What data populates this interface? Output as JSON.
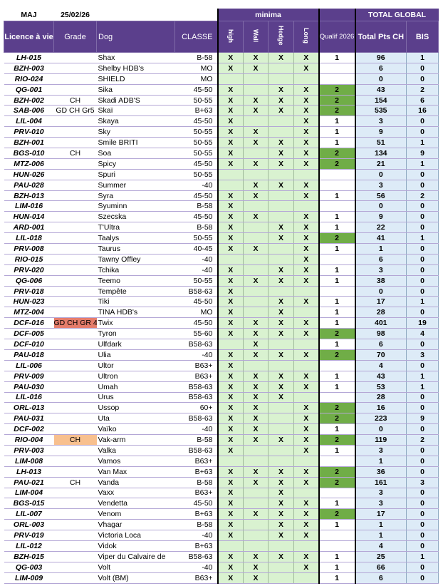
{
  "header": {
    "maj_label": "MAJ",
    "maj_date": "25/02/26",
    "minima_label": "minima",
    "total_label": "TOTAL GLOBAL",
    "columns": [
      "Licence à vie",
      "Grade",
      "Dog",
      "CLASSE",
      "high",
      "Wall",
      "Hedge",
      "Long",
      "Qualif 2026",
      "Total Pts CH",
      "BIS"
    ]
  },
  "colors": {
    "header": "#5b3f8c",
    "minima": "#d9f2d0",
    "qualif2": "#70ad47",
    "total": "#ddebf7",
    "gd_ch_gr4": "#e57c6b",
    "ch_orange": "#f8c08e"
  },
  "rows": [
    {
      "lic": "LH-015",
      "grade": "",
      "dog": "Shax",
      "classe": "B-58",
      "m": [
        "X",
        "X",
        "X",
        "X"
      ],
      "q": "1",
      "pts": "96",
      "bis": "1"
    },
    {
      "lic": "BZH-003",
      "grade": "",
      "dog": "Shelby HDB's",
      "classe": "MO",
      "m": [
        "X",
        "X",
        "",
        "X"
      ],
      "q": "",
      "pts": "6",
      "bis": "0"
    },
    {
      "lic": "RIO-024",
      "grade": "",
      "dog": "SHIELD",
      "classe": "MO",
      "m": [
        "",
        "",
        "",
        ""
      ],
      "q": "",
      "pts": "0",
      "bis": "0"
    },
    {
      "lic": "QG-001",
      "grade": "",
      "dog": "Sika",
      "classe": "45-50",
      "m": [
        "X",
        "",
        "X",
        "X"
      ],
      "q": "2",
      "pts": "43",
      "bis": "2"
    },
    {
      "lic": "BZH-002",
      "grade": "CH",
      "dog": "Skadi ADB'S",
      "classe": "50-55",
      "m": [
        "X",
        "X",
        "X",
        "X"
      ],
      "q": "2",
      "pts": "154",
      "bis": "6"
    },
    {
      "lic": "SAB-006",
      "grade": "GD CH Gr5",
      "dog": "Skaï",
      "classe": "B+63",
      "m": [
        "X",
        "X",
        "X",
        "X"
      ],
      "q": "2",
      "pts": "535",
      "bis": "16"
    },
    {
      "lic": "LIL-004",
      "grade": "",
      "dog": "Skaya",
      "classe": "45-50",
      "m": [
        "X",
        "",
        "",
        "X"
      ],
      "q": "1",
      "pts": "3",
      "bis": "0"
    },
    {
      "lic": "PRV-010",
      "grade": "",
      "dog": "Sky",
      "classe": "50-55",
      "m": [
        "X",
        "X",
        "",
        "X"
      ],
      "q": "1",
      "pts": "9",
      "bis": "0"
    },
    {
      "lic": "BZH-001",
      "grade": "",
      "dog": "Smile BRITI",
      "classe": "50-55",
      "m": [
        "X",
        "X",
        "X",
        "X"
      ],
      "q": "1",
      "pts": "51",
      "bis": "1"
    },
    {
      "lic": "BGS-010",
      "grade": "CH",
      "dog": "Soa",
      "classe": "50-55",
      "m": [
        "X",
        "",
        "X",
        "X"
      ],
      "q": "2",
      "pts": "134",
      "bis": "9"
    },
    {
      "lic": "MTZ-006",
      "grade": "",
      "dog": "Spicy",
      "classe": "45-50",
      "m": [
        "X",
        "X",
        "X",
        "X"
      ],
      "q": "2",
      "pts": "21",
      "bis": "1"
    },
    {
      "lic": "HUN-026",
      "grade": "",
      "dog": "Spuri",
      "classe": "50-55",
      "m": [
        "",
        "",
        "",
        ""
      ],
      "q": "",
      "pts": "0",
      "bis": "0"
    },
    {
      "lic": "PAU-028",
      "grade": "",
      "dog": "Summer",
      "classe": "-40",
      "m": [
        "",
        "X",
        "X",
        "X"
      ],
      "q": "",
      "pts": "3",
      "bis": "0"
    },
    {
      "lic": "BZH-013",
      "grade": "",
      "dog": "Syra",
      "classe": "45-50",
      "m": [
        "X",
        "X",
        "",
        "X"
      ],
      "q": "1",
      "pts": "56",
      "bis": "2"
    },
    {
      "lic": "LIM-016",
      "grade": "",
      "dog": "Syuminn",
      "classe": "B-58",
      "m": [
        "X",
        "",
        "",
        ""
      ],
      "q": "",
      "pts": "0",
      "bis": "0"
    },
    {
      "lic": "HUN-014",
      "grade": "",
      "dog": "Szecska",
      "classe": "45-50",
      "m": [
        "X",
        "X",
        "",
        "X"
      ],
      "q": "1",
      "pts": "9",
      "bis": "0"
    },
    {
      "lic": "ARD-001",
      "grade": "",
      "dog": "T'Ultra",
      "classe": "B-58",
      "m": [
        "X",
        "",
        "X",
        "X"
      ],
      "q": "1",
      "pts": "22",
      "bis": "0"
    },
    {
      "lic": "LIL-018",
      "grade": "",
      "dog": "Taalys",
      "classe": "50-55",
      "m": [
        "X",
        "",
        "X",
        "X"
      ],
      "q": "2",
      "pts": "41",
      "bis": "1"
    },
    {
      "lic": "PRV-008",
      "grade": "",
      "dog": "Taurus",
      "classe": "40-45",
      "m": [
        "X",
        "X",
        "",
        "X"
      ],
      "q": "1",
      "pts": "1",
      "bis": "0"
    },
    {
      "lic": "RIO-015",
      "grade": "",
      "dog": "Tawny Offley",
      "classe": "-40",
      "m": [
        "",
        "",
        "",
        "X"
      ],
      "q": "",
      "pts": "6",
      "bis": "0"
    },
    {
      "lic": "PRV-020",
      "grade": "",
      "dog": "Tchika",
      "classe": "-40",
      "m": [
        "X",
        "",
        "X",
        "X"
      ],
      "q": "1",
      "pts": "3",
      "bis": "0"
    },
    {
      "lic": "QG-006",
      "grade": "",
      "dog": "Teemo",
      "classe": "50-55",
      "m": [
        "X",
        "X",
        "X",
        "X"
      ],
      "q": "1",
      "pts": "38",
      "bis": "0"
    },
    {
      "lic": "PRV-018",
      "grade": "",
      "dog": "Tempête",
      "classe": "B58-63",
      "m": [
        "X",
        "",
        "",
        ""
      ],
      "q": "",
      "pts": "0",
      "bis": "0"
    },
    {
      "lic": "HUN-023",
      "grade": "",
      "dog": "Tiki",
      "classe": "45-50",
      "m": [
        "X",
        "",
        "X",
        "X"
      ],
      "q": "1",
      "pts": "17",
      "bis": "1"
    },
    {
      "lic": "MTZ-004",
      "grade": "",
      "dog": "TINA HDB's",
      "classe": "MO",
      "m": [
        "X",
        "",
        "X",
        ""
      ],
      "q": "1",
      "pts": "28",
      "bis": "0"
    },
    {
      "lic": "DCF-016",
      "grade": "GD CH GR 4",
      "gcolor": "#e57c6b",
      "dog": "Twix",
      "classe": "45-50",
      "m": [
        "X",
        "X",
        "X",
        "X"
      ],
      "q": "1",
      "pts": "401",
      "bis": "19"
    },
    {
      "lic": "DCF-005",
      "grade": "",
      "dog": "Tyron",
      "classe": "55-60",
      "m": [
        "X",
        "X",
        "X",
        "X"
      ],
      "q": "2",
      "pts": "98",
      "bis": "4"
    },
    {
      "lic": "DCF-010",
      "grade": "",
      "dog": "Ulfdark",
      "classe": "B58-63",
      "m": [
        "",
        "X",
        "",
        ""
      ],
      "q": "1",
      "pts": "6",
      "bis": "0"
    },
    {
      "lic": "PAU-018",
      "grade": "",
      "dog": "Ulia",
      "classe": "-40",
      "m": [
        "X",
        "X",
        "X",
        "X"
      ],
      "q": "2",
      "pts": "70",
      "bis": "3"
    },
    {
      "lic": "LIL-006",
      "grade": "",
      "dog": "Ultor",
      "classe": "B63+",
      "m": [
        "X",
        "",
        "",
        ""
      ],
      "q": "",
      "pts": "4",
      "bis": "0"
    },
    {
      "lic": "PRV-009",
      "grade": "",
      "dog": "Ultron",
      "classe": "B63+",
      "m": [
        "X",
        "X",
        "X",
        "X"
      ],
      "q": "1",
      "pts": "43",
      "bis": "1"
    },
    {
      "lic": "PAU-030",
      "grade": "",
      "dog": "Umah",
      "classe": "B58-63",
      "m": [
        "X",
        "X",
        "X",
        "X"
      ],
      "q": "1",
      "pts": "53",
      "bis": "1"
    },
    {
      "lic": "LIL-016",
      "grade": "",
      "dog": "Urus",
      "classe": "B58-63",
      "m": [
        "X",
        "X",
        "X",
        ""
      ],
      "q": "",
      "pts": "28",
      "bis": "0"
    },
    {
      "lic": "ORL-013",
      "grade": "",
      "dog": "Ussop",
      "classe": "60+",
      "m": [
        "X",
        "X",
        "",
        "X"
      ],
      "q": "2",
      "pts": "16",
      "bis": "0"
    },
    {
      "lic": "PAU-031",
      "grade": "",
      "dog": "Uta",
      "classe": "B58-63",
      "m": [
        "X",
        "X",
        "",
        "X"
      ],
      "q": "2",
      "pts": "223",
      "bis": "9"
    },
    {
      "lic": "DCF-002",
      "grade": "",
      "dog": "Vaïko",
      "classe": "-40",
      "m": [
        "X",
        "X",
        "",
        "X"
      ],
      "q": "1",
      "pts": "0",
      "bis": "0"
    },
    {
      "lic": "RIO-004",
      "grade": "CH",
      "gcolor": "#f8c08e",
      "dog": "Vak-arm",
      "classe": "B-58",
      "m": [
        "X",
        "X",
        "X",
        "X"
      ],
      "q": "2",
      "pts": "119",
      "bis": "2"
    },
    {
      "lic": "PRV-003",
      "grade": "",
      "dog": "Valka",
      "classe": "B58-63",
      "m": [
        "X",
        "",
        "",
        "X"
      ],
      "q": "1",
      "pts": "3",
      "bis": "0"
    },
    {
      "lic": "LIM-008",
      "grade": "",
      "dog": "Vamos",
      "classe": "B63+",
      "m": [
        "",
        "",
        "",
        ""
      ],
      "q": "",
      "pts": "1",
      "bis": "0"
    },
    {
      "lic": "LH-013",
      "grade": "",
      "dog": "Van Max",
      "classe": "B+63",
      "m": [
        "X",
        "X",
        "X",
        "X"
      ],
      "q": "2",
      "pts": "36",
      "bis": "0"
    },
    {
      "lic": "PAU-021",
      "grade": "CH",
      "dog": "Vanda",
      "classe": "B-58",
      "m": [
        "X",
        "X",
        "X",
        "X"
      ],
      "q": "2",
      "pts": "161",
      "bis": "3"
    },
    {
      "lic": "LIM-004",
      "grade": "",
      "dog": "Vaxx",
      "classe": "B63+",
      "m": [
        "X",
        "",
        "X",
        ""
      ],
      "q": "",
      "pts": "3",
      "bis": "0"
    },
    {
      "lic": "BGS-015",
      "grade": "",
      "dog": "Vendetta",
      "classe": "45-50",
      "m": [
        "X",
        "",
        "X",
        "X"
      ],
      "q": "1",
      "pts": "3",
      "bis": "0"
    },
    {
      "lic": "LIL-007",
      "grade": "",
      "dog": "Venom",
      "classe": "B+63",
      "m": [
        "X",
        "X",
        "X",
        "X"
      ],
      "q": "2",
      "pts": "17",
      "bis": "0"
    },
    {
      "lic": "ORL-003",
      "grade": "",
      "dog": "Vhagar",
      "classe": "B-58",
      "m": [
        "X",
        "",
        "X",
        "X"
      ],
      "q": "1",
      "pts": "1",
      "bis": "0"
    },
    {
      "lic": "PRV-019",
      "grade": "",
      "dog": "Victoria Loca",
      "classe": "-40",
      "m": [
        "X",
        "",
        "X",
        "X"
      ],
      "q": "",
      "pts": "1",
      "bis": "0"
    },
    {
      "lic": "LIL-012",
      "grade": "",
      "dog": "Vidok",
      "classe": "B+63",
      "m": [
        "",
        "",
        "",
        ""
      ],
      "q": "",
      "pts": "4",
      "bis": "0"
    },
    {
      "lic": "BZH-015",
      "grade": "",
      "dog": "Viper du Calvaire de",
      "classe": "B58-63",
      "m": [
        "X",
        "X",
        "X",
        "X"
      ],
      "q": "1",
      "pts": "25",
      "bis": "1"
    },
    {
      "lic": "QG-003",
      "grade": "",
      "dog": "Volt",
      "classe": "-40",
      "m": [
        "X",
        "X",
        "",
        "X"
      ],
      "q": "1",
      "pts": "66",
      "bis": "0"
    },
    {
      "lic": "LIM-009",
      "grade": "",
      "dog": "Volt (BM)",
      "classe": "B63+",
      "m": [
        "X",
        "X",
        "",
        ""
      ],
      "q": "1",
      "pts": "6",
      "bis": "0"
    }
  ]
}
